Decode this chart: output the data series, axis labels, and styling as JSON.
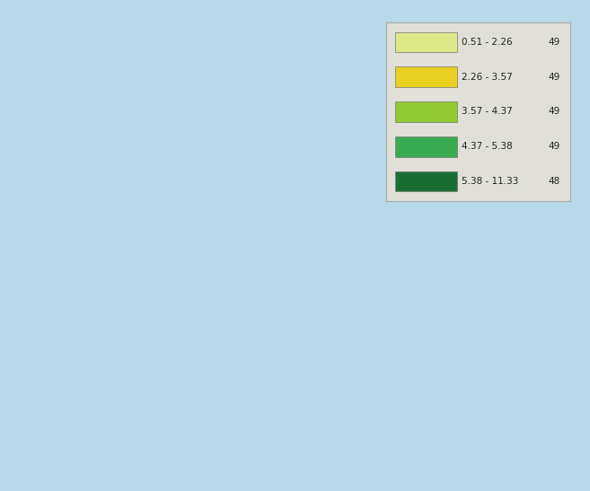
{
  "title": "",
  "background_color": "#b8d9e8",
  "legend_labels": [
    "0.51 - 2.26",
    "2.26 - 3.57",
    "3.57 - 4.37",
    "4.37 - 5.38",
    "5.38 - 11.33"
  ],
  "legend_counts": [
    49,
    49,
    49,
    49,
    48
  ],
  "legend_colors": [
    "#dde88a",
    "#e8d020",
    "#92c832",
    "#3aaa50",
    "#1a6e35"
  ],
  "no_data_color": "#b8b8b8",
  "border_color": "#ffffff",
  "legend_bg": "#e0e0d8",
  "legend_border": "#aaaaaa",
  "figsize": [
    6.57,
    5.47
  ],
  "dpi": 100,
  "country_colors": {
    "Iceland": "#92c832",
    "Norway": "#e8d020",
    "Sweden": "#e8d020",
    "Finland": "#e8d020",
    "Denmark": "#e8d020",
    "Estonia": "#e8d020",
    "Latvia": "#e8d020",
    "Lithuania": "#e8d020",
    "Ireland": "#1a6e35",
    "United Kingdom": "#3aaa50",
    "Netherlands": "#3aaa50",
    "Belgium": "#3aaa50",
    "Luxembourg": "#3aaa50",
    "France": "#92c832",
    "Germany": "#1a6e35",
    "Austria": "#3aaa50",
    "Switzerland": "#3aaa50",
    "Portugal": "#dde88a",
    "Spain": "#dde88a",
    "Italy": "#e8d020",
    "Greece": "#dde88a",
    "Turkey": "#dde88a",
    "Czech Rep.": "#b8b8b8",
    "Slovakia": "#b8b8b8",
    "Hungary": "#b8b8b8",
    "Romania": "#b8b8b8",
    "Bulgaria": "#b8b8b8",
    "Poland": "#b8b8b8",
    "Ukraine": "#b8b8b8",
    "Belarus": "#b8b8b8",
    "Moldova": "#b8b8b8",
    "Russia": "#b8b8b8",
    "Serbia": "#b8b8b8",
    "Croatia": "#b8b8b8",
    "Bosnia and Herz.": "#b8b8b8",
    "Albania": "#b8b8b8",
    "North Macedonia": "#b8b8b8",
    "Slovenia": "#3aaa50",
    "Montenegro": "#b8b8b8",
    "Cyprus": "#b8b8b8",
    "Malta": "#b8b8b8"
  }
}
